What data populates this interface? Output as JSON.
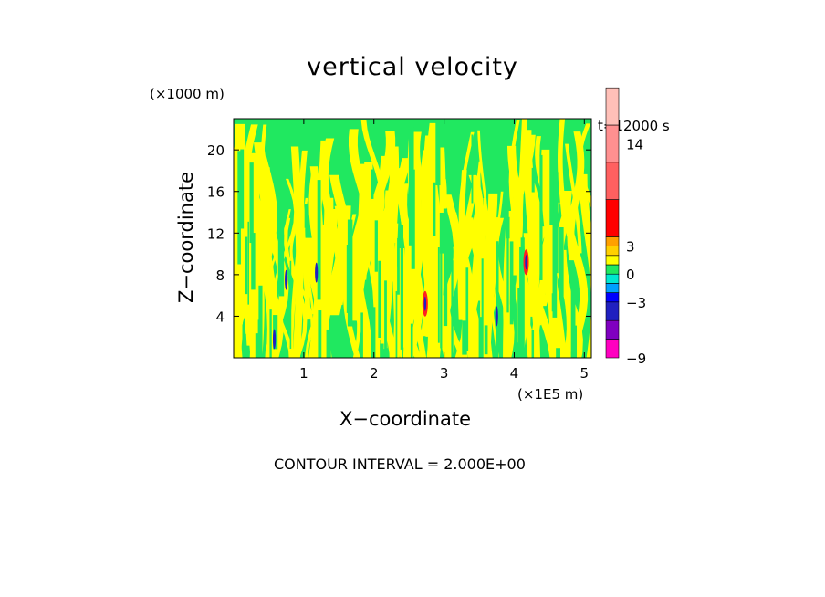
{
  "chart_data": {
    "type": "heatmap",
    "title": "vertical velocity",
    "xlabel": "X−coordinate",
    "ylabel": "Z−coordinate",
    "x_unit": "(×1E5 m)",
    "y_unit": "(×1000 m)",
    "time_label": "t=12000 s",
    "contour_interval_text": "CONTOUR INTERVAL = 2.000E+00",
    "xlim": [
      0,
      5.1
    ],
    "ylim": [
      0,
      23
    ],
    "x_ticks": [
      1,
      2,
      3,
      4,
      5
    ],
    "y_ticks": [
      4,
      8,
      12,
      16,
      20
    ],
    "colorbar": {
      "tick_labels": [
        "14",
        "3",
        "0",
        "−3",
        "−9"
      ],
      "levels": [
        {
          "value": -9,
          "color": "#ff00c0"
        },
        {
          "value": -7,
          "color": "#8000c0"
        },
        {
          "value": -5,
          "color": "#2020c0"
        },
        {
          "value": -3,
          "color": "#0000ff"
        },
        {
          "value": -2,
          "color": "#00a0ff"
        },
        {
          "value": -1,
          "color": "#00e8d0"
        },
        {
          "value": 0,
          "color": "#20e860"
        },
        {
          "value": 1,
          "color": "#ffff00"
        },
        {
          "value": 2,
          "color": "#ffd000"
        },
        {
          "value": 3,
          "color": "#ffa000"
        },
        {
          "value": 4,
          "color": "#ff0000"
        },
        {
          "value": 8,
          "color": "#ff6060"
        },
        {
          "value": 12,
          "color": "#ff9090"
        },
        {
          "value": 16,
          "color": "#ffc0b8"
        }
      ]
    },
    "field_colors": {
      "negative": "#20e860",
      "positive": "#ffff00",
      "strong_up": "#ff2020",
      "strong_down": "#2020c0"
    },
    "features": [
      {
        "x": 0.75,
        "z": 7.5,
        "sign": "down"
      },
      {
        "x": 1.18,
        "z": 8.2,
        "sign": "down"
      },
      {
        "x": 2.73,
        "z": 5.2,
        "sign": "up"
      },
      {
        "x": 3.75,
        "z": 4.0,
        "sign": "down"
      },
      {
        "x": 4.17,
        "z": 9.2,
        "sign": "up"
      },
      {
        "x": 0.58,
        "z": 1.8,
        "sign": "down"
      }
    ]
  }
}
